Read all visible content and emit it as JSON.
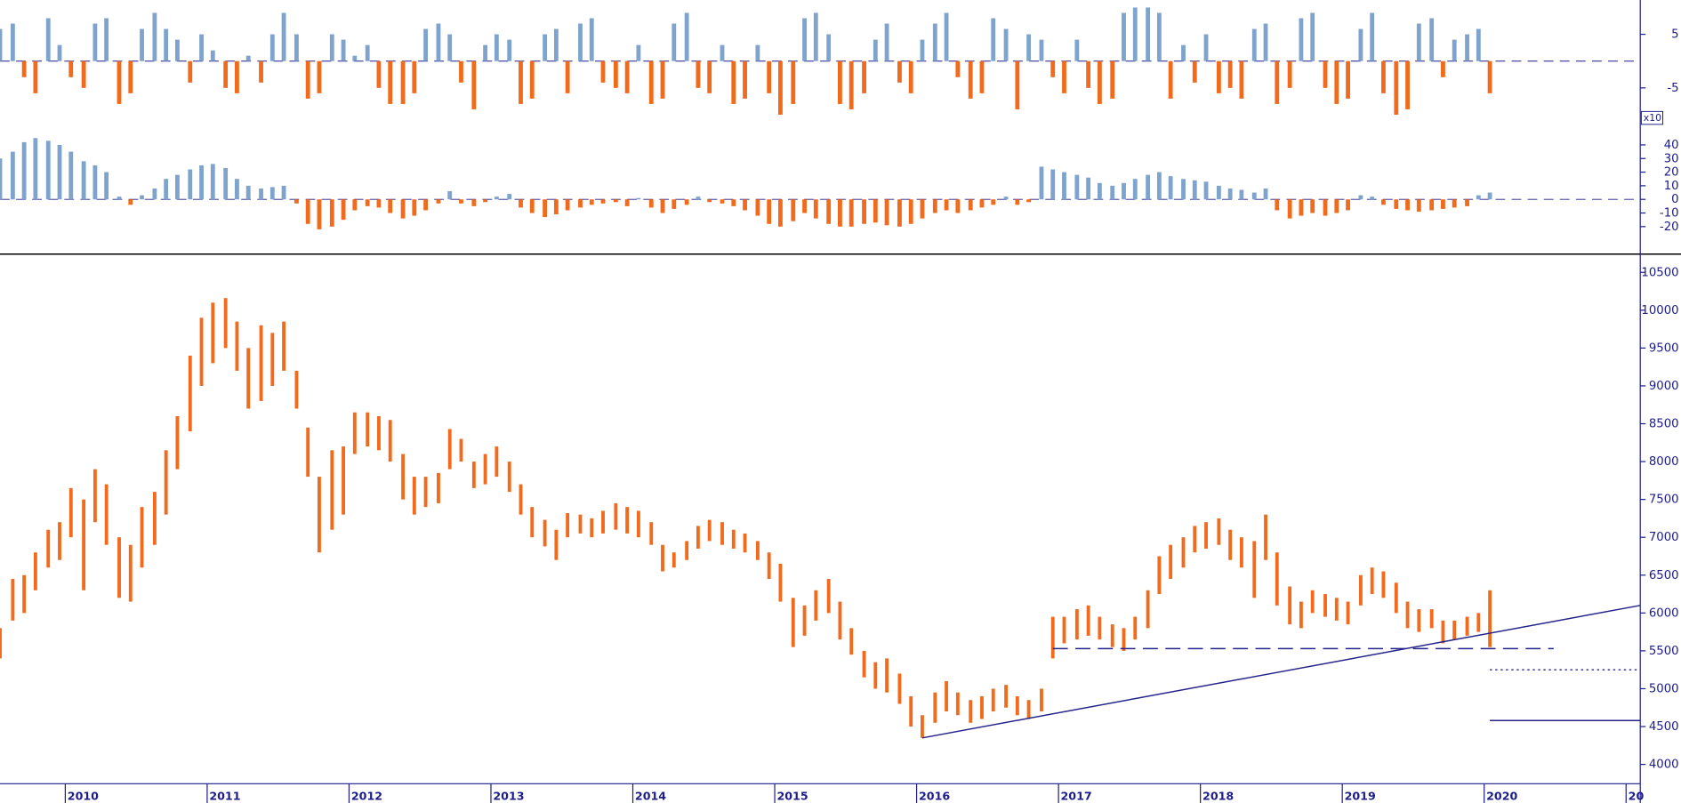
{
  "chart_data": {
    "type": "range",
    "color": "#f26a1b",
    "xlim": [
      2009.54,
      2021.1
    ],
    "xticks": [
      2010,
      2011,
      2012,
      2013,
      2014,
      2015,
      2016,
      2017,
      2018,
      2019,
      2020,
      {
        "value": 2021,
        "label": "20"
      }
    ],
    "ylim": [
      3745,
      10727
    ],
    "yticks": [
      10500,
      10000,
      9500,
      9000,
      8500,
      8000,
      7500,
      7000,
      6500,
      6000,
      5500,
      5000,
      4500,
      4000
    ],
    "x": [
      2009.54,
      2009.63,
      2009.71,
      2009.79,
      2009.88,
      2009.96,
      2010.04,
      2010.13,
      2010.21,
      2010.29,
      2010.38,
      2010.46,
      2010.54,
      2010.63,
      2010.71,
      2010.79,
      2010.88,
      2010.96,
      2011.04,
      2011.13,
      2011.21,
      2011.29,
      2011.38,
      2011.46,
      2011.54,
      2011.63,
      2011.71,
      2011.79,
      2011.88,
      2011.96,
      2012.04,
      2012.13,
      2012.21,
      2012.29,
      2012.38,
      2012.46,
      2012.54,
      2012.63,
      2012.71,
      2012.79,
      2012.88,
      2012.96,
      2013.04,
      2013.13,
      2013.21,
      2013.29,
      2013.38,
      2013.46,
      2013.54,
      2013.63,
      2013.71,
      2013.79,
      2013.88,
      2013.96,
      2014.04,
      2014.13,
      2014.21,
      2014.29,
      2014.38,
      2014.46,
      2014.54,
      2014.63,
      2014.71,
      2014.79,
      2014.88,
      2014.96,
      2015.04,
      2015.13,
      2015.21,
      2015.29,
      2015.38,
      2015.46,
      2015.54,
      2015.63,
      2015.71,
      2015.79,
      2015.88,
      2015.96,
      2016.04,
      2016.13,
      2016.21,
      2016.29,
      2016.38,
      2016.46,
      2016.54,
      2016.63,
      2016.71,
      2016.79,
      2016.88,
      2016.96,
      2017.04,
      2017.13,
      2017.21,
      2017.29,
      2017.38,
      2017.46,
      2017.54,
      2017.63,
      2017.71,
      2017.79,
      2017.88,
      2017.96,
      2018.04,
      2018.13,
      2018.21,
      2018.29,
      2018.38,
      2018.46,
      2018.54,
      2018.63,
      2018.71,
      2018.79,
      2018.88,
      2018.96,
      2019.04,
      2019.13,
      2019.21,
      2019.29,
      2019.38,
      2019.46,
      2019.54,
      2019.63,
      2019.71,
      2019.79,
      2019.88,
      2019.96,
      2020.04
    ],
    "low": [
      5400,
      5900,
      6000,
      6300,
      6600,
      6700,
      7000,
      6300,
      7200,
      6900,
      6200,
      6150,
      6600,
      6900,
      7300,
      7900,
      8400,
      9000,
      9300,
      9500,
      9200,
      8700,
      8800,
      9000,
      9200,
      8700,
      7800,
      6800,
      7100,
      7300,
      8100,
      8200,
      8150,
      8000,
      7500,
      7300,
      7400,
      7450,
      7900,
      8000,
      7650,
      7700,
      7800,
      7600,
      7300,
      7000,
      6880,
      6700,
      7000,
      7050,
      7000,
      7050,
      7100,
      7050,
      7000,
      6900,
      6550,
      6600,
      6700,
      6850,
      6950,
      6900,
      6850,
      6800,
      6700,
      6450,
      6150,
      5550,
      5700,
      5900,
      6000,
      5650,
      5450,
      5150,
      5000,
      4950,
      4800,
      4500,
      4350,
      4550,
      4700,
      4650,
      4550,
      4600,
      4700,
      4750,
      4650,
      4600,
      4700,
      5400,
      5600,
      5650,
      5700,
      5650,
      5550,
      5500,
      5650,
      5800,
      6250,
      6450,
      6600,
      6800,
      6850,
      6900,
      6700,
      6600,
      6200,
      6700,
      6100,
      5850,
      5800,
      6000,
      5950,
      5900,
      5850,
      6100,
      6250,
      6200,
      6000,
      5800,
      5750,
      5800,
      5600,
      5650,
      5700,
      5750,
      5550
    ],
    "high": [
      5800,
      6450,
      6500,
      6800,
      7100,
      7200,
      7650,
      7500,
      7900,
      7700,
      7000,
      6900,
      7400,
      7600,
      8150,
      8600,
      9400,
      9900,
      10100,
      10160,
      9850,
      9500,
      9800,
      9700,
      9850,
      9200,
      8450,
      7800,
      8150,
      8200,
      8650,
      8650,
      8600,
      8550,
      8100,
      7800,
      7800,
      7850,
      8430,
      8300,
      8000,
      8100,
      8200,
      8000,
      7700,
      7400,
      7230,
      7100,
      7320,
      7300,
      7250,
      7350,
      7450,
      7400,
      7350,
      7200,
      6900,
      6800,
      6950,
      7150,
      7230,
      7200,
      7100,
      7050,
      6950,
      6800,
      6650,
      6200,
      6100,
      6300,
      6450,
      6150,
      5800,
      5500,
      5350,
      5400,
      5200,
      4900,
      4650,
      4950,
      5100,
      4950,
      4850,
      4900,
      5000,
      5050,
      4900,
      4850,
      5000,
      5950,
      5950,
      6050,
      6100,
      5950,
      5850,
      5800,
      5950,
      6300,
      6750,
      6900,
      7000,
      7150,
      7200,
      7250,
      7100,
      7000,
      6950,
      7300,
      6800,
      6350,
      6150,
      6300,
      6250,
      6200,
      6150,
      6500,
      6600,
      6550,
      6400,
      6150,
      6050,
      6050,
      5900,
      5900,
      5950,
      6000,
      6300
    ],
    "lines": [
      {
        "x": [
          2016.04,
          2021.1
        ],
        "y": [
          4350,
          6100
        ],
        "style": "solid",
        "color": "#23238a"
      },
      {
        "x": [
          2016.96,
          2020.49
        ],
        "y": [
          5530,
          5530
        ],
        "style": "dashed",
        "color": "#23238a"
      },
      {
        "x": [
          2020.04,
          2021.1
        ],
        "y": [
          5250,
          5250
        ],
        "style": "dotted",
        "color": "#23238a"
      },
      {
        "x": [
          2020.04,
          2021.1
        ],
        "y": [
          4580,
          4580
        ],
        "style": "solid",
        "color": "#23238a"
      }
    ],
    "indicators": [
      {
        "type": "bar",
        "ylim": [
          -10.6,
          11.4
        ],
        "yticks": [
          5,
          -5
        ],
        "colors": {
          "positive": "#7ea3cc",
          "negative": "#f26a1b"
        },
        "values": [
          6,
          7,
          -3,
          -6,
          8,
          3,
          -3,
          -5,
          7,
          8,
          -8,
          -6,
          6,
          9,
          6,
          4,
          -4,
          5,
          2,
          -5,
          -6,
          1,
          -4,
          5,
          9,
          5,
          -7,
          -6,
          5,
          4,
          1,
          3,
          -5,
          -8,
          -8,
          -6,
          6,
          7,
          5,
          -4,
          -9,
          3,
          5,
          4,
          -8,
          -7,
          5,
          6,
          -6,
          7,
          8,
          -4,
          -5,
          -6,
          3,
          -8,
          -7,
          7,
          9,
          -5,
          -6,
          3,
          -8,
          -7,
          3,
          -6,
          -10,
          -8,
          8,
          9,
          5,
          -8,
          -9,
          -6,
          4,
          7,
          -4,
          -6,
          4,
          7,
          9,
          -3,
          -7,
          -6,
          8,
          6,
          -9,
          5,
          4,
          -3,
          -6,
          4,
          -5,
          -8,
          -7,
          9,
          10,
          10,
          9,
          -7,
          3,
          -4,
          5,
          -6,
          -5,
          -7,
          6,
          7,
          -8,
          -5,
          8,
          9,
          -5,
          -8,
          -7,
          6,
          9,
          -6,
          -10,
          -9,
          7,
          8,
          -3,
          4,
          5,
          6,
          -6
        ]
      },
      {
        "type": "bar",
        "ylim": [
          -38.6,
          53.5
        ],
        "yticks": [
          40,
          30,
          20,
          10,
          0,
          -10,
          -20
        ],
        "scale_label": "x10",
        "colors": {
          "positive": "#7ea3cc",
          "negative": "#f26a1b"
        },
        "values": [
          30,
          35,
          42,
          45,
          43,
          40,
          35,
          28,
          25,
          20,
          2,
          -4,
          3,
          8,
          15,
          18,
          22,
          25,
          26,
          23,
          15,
          10,
          8,
          9,
          10,
          -3,
          -18,
          -22,
          -20,
          -15,
          -8,
          -5,
          -6,
          -10,
          -14,
          -12,
          -8,
          -3,
          6,
          -3,
          -5,
          -2,
          2,
          4,
          -6,
          -10,
          -13,
          -11,
          -8,
          -6,
          -4,
          -3,
          -2,
          -5,
          1,
          -6,
          -10,
          -7,
          -4,
          2,
          -2,
          -3,
          -5,
          -8,
          -12,
          -18,
          -20,
          -16,
          -10,
          -14,
          -18,
          -20,
          -20,
          -18,
          -17,
          -19,
          -20,
          -18,
          -14,
          -10,
          -8,
          -10,
          -8,
          -6,
          -4,
          2,
          -4,
          -2,
          24,
          22,
          20,
          18,
          16,
          12,
          10,
          12,
          15,
          18,
          20,
          17,
          15,
          14,
          13,
          10,
          8,
          7,
          5,
          8,
          -8,
          -14,
          -12,
          -10,
          -12,
          -10,
          -8,
          3,
          2,
          -4,
          -7,
          -8,
          -9,
          -8,
          -7,
          -6,
          -5,
          3,
          5
        ]
      }
    ]
  }
}
